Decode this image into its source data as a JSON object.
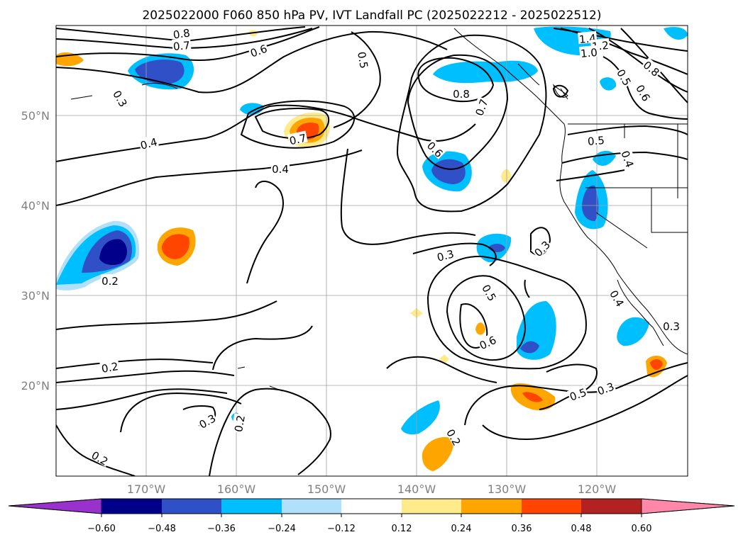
{
  "title": "2025022000 F060 850 hPa PV, IVT Landfall PC (2025022212 - 2025022512)",
  "map": {
    "lat_labels": [
      "50°N",
      "40°N",
      "30°N",
      "20°N"
    ],
    "lon_labels": [
      "170°W",
      "160°W",
      "150°W",
      "140°W",
      "130°W",
      "120°W"
    ]
  },
  "contour_labels": [
    "0.8",
    "0.7",
    "0.6",
    "0.5",
    "0.3",
    "0.4",
    "0.4",
    "0.7",
    "0.8",
    "0.7",
    "0.6",
    "0.5",
    "0.4",
    "1.4",
    "1.2",
    "1.0",
    "0.8",
    "0.6",
    "0.5",
    "0.3",
    "0.2",
    "0.3",
    "0.5",
    "0.6",
    "0.4",
    "0.3",
    "0.2",
    "0.3",
    "0.2",
    "0.2",
    "0.5",
    "0.3",
    "0.2"
  ],
  "colorbar": {
    "ticks": [
      "−0.60",
      "−0.48",
      "−0.36",
      "−0.24",
      "−0.12",
      "0.12",
      "0.24",
      "0.36",
      "0.48",
      "0.60"
    ],
    "colors": [
      "#9932cc",
      "#00008b",
      "#3050c8",
      "#00bfff",
      "#b0e0fa",
      "#ffffff",
      "#ffeb8c",
      "#ffa500",
      "#ff4500",
      "#b22222",
      "#ff88aa"
    ]
  }
}
